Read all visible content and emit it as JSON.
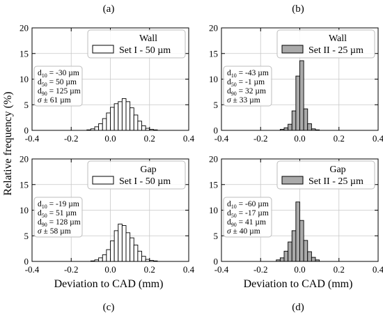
{
  "figure": {
    "ylabel": "Relative frequency (%)",
    "xlabel": "Deviation to CAD (mm)"
  },
  "chart_data": [
    {
      "type": "bar",
      "panel_label": "(a)",
      "legend_title": "Wall",
      "series": [
        {
          "name": "Set I - 50 µm",
          "color": "#ffffff",
          "edge": "#000000"
        }
      ],
      "bin_width": 0.02,
      "bin_centers": [
        -0.11,
        -0.09,
        -0.07,
        -0.05,
        -0.03,
        -0.01,
        0.01,
        0.03,
        0.05,
        0.07,
        0.09,
        0.11,
        0.13,
        0.15,
        0.17,
        0.19,
        0.21,
        0.23
      ],
      "values": [
        0.1,
        0.3,
        0.7,
        1.3,
        2.3,
        3.4,
        4.5,
        5.2,
        5.6,
        6.2,
        5.6,
        4.4,
        3.0,
        1.8,
        0.9,
        0.4,
        0.2,
        0.1
      ],
      "stats": [
        "d10 = -30 µm",
        "d50 = 50 µm",
        "d90 = 125 µm",
        "σ ± 61 µm"
      ],
      "xlim": [
        -0.4,
        0.4
      ],
      "ylim": [
        0,
        20
      ],
      "xticks": [
        "-0.4",
        "-0.2",
        "0.0",
        "0.2",
        "0.4"
      ],
      "yticks": [
        "0",
        "5",
        "10",
        "15",
        "20"
      ],
      "grid": true
    },
    {
      "type": "bar",
      "panel_label": "(b)",
      "legend_title": "Wall",
      "series": [
        {
          "name": "Set II - 25 µm",
          "color": "#aaaaaa",
          "edge": "#000000"
        }
      ],
      "bin_width": 0.02,
      "bin_centers": [
        -0.09,
        -0.07,
        -0.05,
        -0.03,
        -0.01,
        0.01,
        0.03,
        0.05,
        0.07,
        0.09
      ],
      "values": [
        0.2,
        0.5,
        1.2,
        3.8,
        10.6,
        13.6,
        4.2,
        1.3,
        0.3,
        0.1
      ],
      "stats": [
        "d10 = -43 µm",
        "d50 = -1 µm",
        "d90 = 32 µm",
        "σ ± 33 µm"
      ],
      "xlim": [
        -0.4,
        0.4
      ],
      "ylim": [
        0,
        20
      ],
      "xticks": [
        "-0.4",
        "-0.2",
        "0.0",
        "0.2",
        "0.4"
      ],
      "yticks": [
        "0",
        "5",
        "10",
        "15",
        "20"
      ],
      "grid": true
    },
    {
      "type": "bar",
      "panel_label": "(c)",
      "legend_title": "Gap",
      "series": [
        {
          "name": "Set I - 50 µm",
          "color": "#ffffff",
          "edge": "#000000"
        }
      ],
      "bin_width": 0.02,
      "bin_centers": [
        -0.09,
        -0.07,
        -0.05,
        -0.03,
        -0.01,
        0.01,
        0.03,
        0.05,
        0.07,
        0.09,
        0.11,
        0.13,
        0.15,
        0.17,
        0.19,
        0.21,
        0.23
      ],
      "values": [
        0.1,
        0.3,
        0.7,
        1.3,
        2.3,
        4.0,
        6.0,
        7.3,
        7.0,
        5.6,
        4.6,
        3.2,
        2.0,
        1.0,
        0.4,
        0.2,
        0.1
      ],
      "stats": [
        "d10 = -19 µm",
        "d50 = 51 µm",
        "d90 = 128 µm",
        "σ ± 58 µm"
      ],
      "xlim": [
        -0.4,
        0.4
      ],
      "ylim": [
        0,
        20
      ],
      "xticks": [
        "-0.4",
        "-0.2",
        "0.0",
        "0.2",
        "0.4"
      ],
      "yticks": [
        "0",
        "5",
        "10",
        "15",
        "20"
      ],
      "grid": true
    },
    {
      "type": "bar",
      "panel_label": "(d)",
      "legend_title": "Gap",
      "series": [
        {
          "name": "Set II - 25 µm",
          "color": "#aaaaaa",
          "edge": "#000000"
        }
      ],
      "bin_width": 0.02,
      "bin_centers": [
        -0.11,
        -0.09,
        -0.07,
        -0.05,
        -0.03,
        -0.01,
        0.01,
        0.03,
        0.05,
        0.07,
        0.09
      ],
      "values": [
        0.3,
        0.7,
        2.0,
        3.8,
        6.0,
        11.6,
        8.0,
        4.1,
        1.9,
        0.8,
        0.3
      ],
      "stats": [
        "d10 = -60 µm",
        "d50 = -17 µm",
        "d90 = 41 µm",
        "σ ± 40 µm"
      ],
      "xlim": [
        -0.4,
        0.4
      ],
      "ylim": [
        0,
        20
      ],
      "xticks": [
        "-0.4",
        "-0.2",
        "0.0",
        "0.2",
        "0.4"
      ],
      "yticks": [
        "0",
        "5",
        "10",
        "15",
        "20"
      ],
      "grid": true
    }
  ]
}
